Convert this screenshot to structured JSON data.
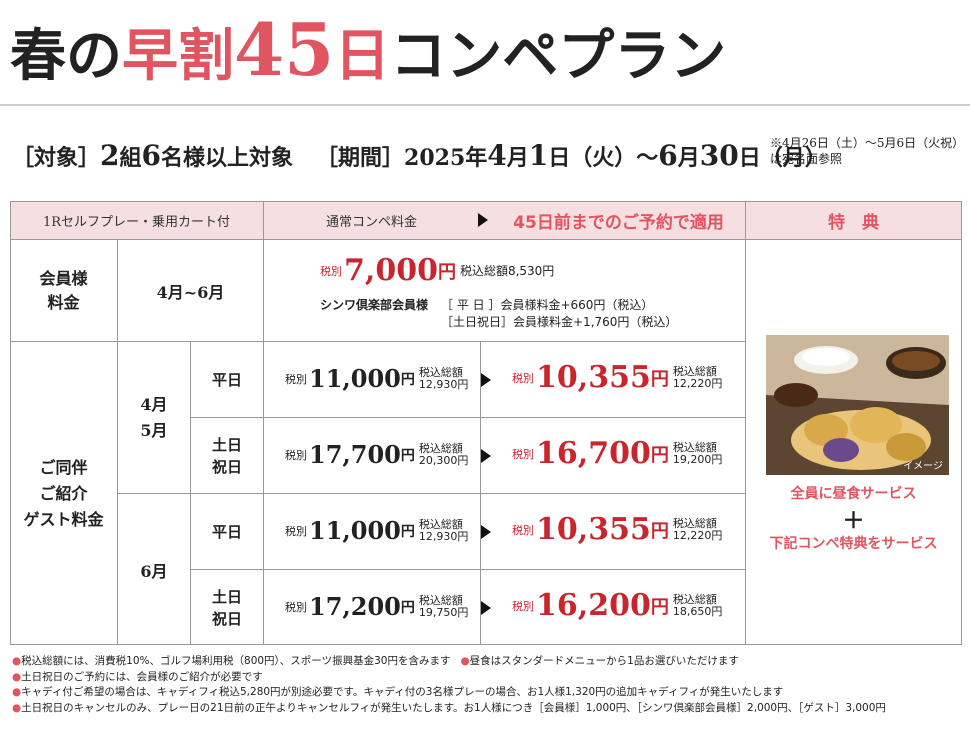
{
  "title": {
    "part1": "春の",
    "part2": "早割",
    "part3": "45",
    "part4": "日",
    "part5": "コンペプラン"
  },
  "conditions": {
    "target_label": "［対象］",
    "target_num1": "2",
    "target_text1": "組",
    "target_num2": "6",
    "target_text2": "名様以上対象",
    "period_label": "［期間］",
    "period_year": "2025年",
    "start_month": "4",
    "start_month_unit": "月",
    "start_day": "1",
    "start_day_unit": "日（火）～",
    "end_month": "6",
    "end_month_unit": "月",
    "end_day": "30",
    "end_day_unit": "日（月）"
  },
  "note_top": "※4月26日（土）～5月6日（火祝）は宛名面参照",
  "table": {
    "headers": {
      "play": "1Rセルフプレー・乗用カート付",
      "normal": "通常コンペ料金",
      "early": "45日前までのご予約で適用",
      "benefit": "特　典"
    },
    "member": {
      "label": "会員様\n料金",
      "period": "4月~6月",
      "tax_label": "税別",
      "price": "7,000",
      "yen": "円",
      "tax_total": "税込総額8,530円",
      "shinwa_label": "シンワ倶楽部会員様",
      "weekday_line": "［ 平 日 ］会員様料金+660円（税込）",
      "holiday_line": "［土日祝日］会員様料金+1,760円（税込）"
    },
    "guest": {
      "label": "ご同伴\nご紹介\nゲスト料金",
      "month_a": "4月\n5月",
      "month_b": "6月",
      "rows": [
        {
          "day": "平日",
          "normal": "11,000",
          "normal_tax": "12,930円",
          "early": "10,355",
          "early_tax": "12,220円"
        },
        {
          "day": "土日\n祝日",
          "normal": "17,700",
          "normal_tax": "20,300円",
          "early": "16,700",
          "early_tax": "19,200円"
        },
        {
          "day": "平日",
          "normal": "11,000",
          "normal_tax": "12,930円",
          "early": "10,355",
          "early_tax": "12,220円"
        },
        {
          "day": "土日\n祝日",
          "normal": "17,200",
          "normal_tax": "19,750円",
          "early": "16,200",
          "early_tax": "18,650円"
        }
      ],
      "tax_label": "税別",
      "yen": "円",
      "tax_total_label": "税込総額"
    },
    "benefit": {
      "image_caption": "イメージ",
      "line1": "全員に昼食サービス",
      "plus": "＋",
      "line2": "下記コンペ特典をサービス"
    }
  },
  "notes": [
    "税込総額には、消費税10%、ゴルフ場利用税（800円）、スポーツ振興基金30円を含みます",
    "昼食はスタンダードメニューから1品お選びいただけます",
    "土日祝日のご予約には、会員様のご紹介が必要です",
    "キャディ付ご希望の場合は、キャディフィ税込5,280円が別途必要です。キャディ付の3名様プレーの場合、お1人様1,320円の追加キャディフィが発生いたします",
    "土日祝日のキャンセルのみ、プレー日の21日前の正午よりキャンセルフィが発生いたします。お1人様につき［会員様］1,000円、［シンワ倶楽部会員様］2,000円、［ゲスト］3,000円"
  ],
  "colors": {
    "accent": "#e05560",
    "price_red": "#c9252d",
    "header_bg": "#f6dfe0"
  }
}
